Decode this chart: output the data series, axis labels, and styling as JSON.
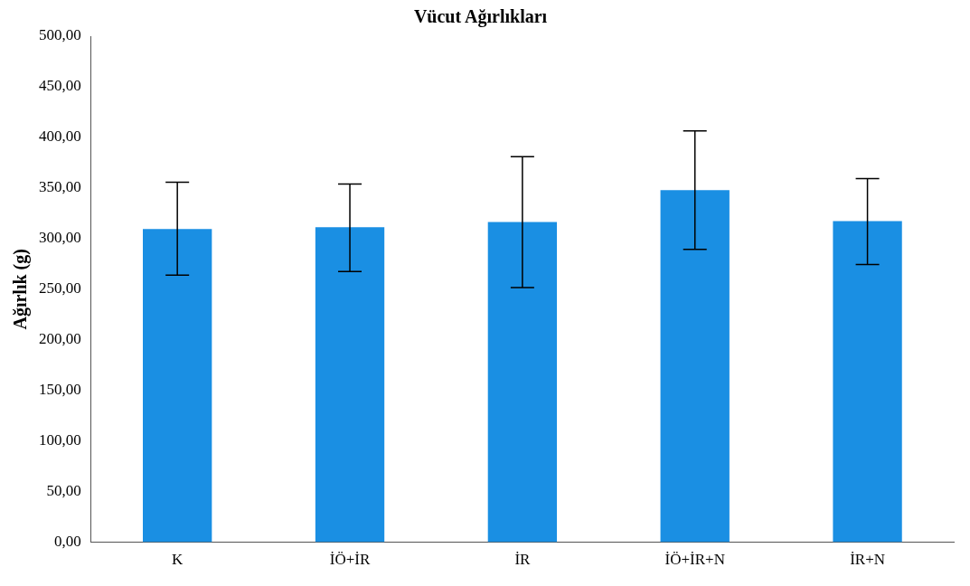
{
  "chart_data": {
    "type": "bar",
    "title": "Vücut Ağırlıkları",
    "ylabel": "Ağırlık (g)",
    "categories": [
      "K",
      "İÖ+İR",
      "İR",
      "İÖ+İR+N",
      "İR+N"
    ],
    "values": [
      309.4,
      311.2,
      316.4,
      347.9,
      317.3
    ],
    "errors": [
      [
        264,
        355.8
      ],
      [
        267.5,
        354
      ],
      [
        251.7,
        381
      ],
      [
        289.3,
        406.5
      ],
      [
        274.5,
        359.3
      ]
    ],
    "color": "#1a8fe3",
    "ylim": [
      0,
      500
    ],
    "yticks": [
      {
        "value": 0,
        "label": "0,00"
      },
      {
        "value": 50,
        "label": "50,00"
      },
      {
        "value": 100,
        "label": "100,00"
      },
      {
        "value": 150,
        "label": "150,00"
      },
      {
        "value": 200,
        "label": "200,00"
      },
      {
        "value": 250,
        "label": "250,00"
      },
      {
        "value": 300,
        "label": "300,00"
      },
      {
        "value": 350,
        "label": "350,00"
      },
      {
        "value": 400,
        "label": "400,00"
      },
      {
        "value": 450,
        "label": "450,00"
      },
      {
        "value": 500,
        "label": "500,00"
      }
    ],
    "grid": false,
    "legend": false
  }
}
